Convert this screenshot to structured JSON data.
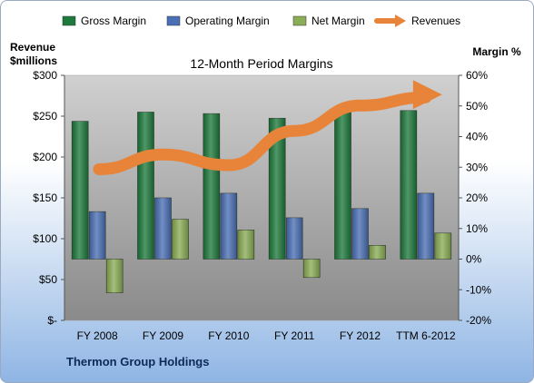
{
  "chart_data": {
    "type": "bar",
    "title": "12-Month Period Margins",
    "subtitle": "Thermon Group Holdings",
    "categories": [
      "FY 2008",
      "FY 2009",
      "FY 2010",
      "FY 2011",
      "FY 2012",
      "TTM 6-2012"
    ],
    "series": [
      {
        "name": "Gross Margin",
        "axis": "right",
        "kind": "bar",
        "color": "#1e7a3c",
        "values": [
          45,
          48,
          47.5,
          46,
          48.5,
          48.5
        ]
      },
      {
        "name": "Operating Margin",
        "axis": "right",
        "kind": "bar",
        "color": "#4a6fb5",
        "values": [
          15.5,
          20,
          21.5,
          13.5,
          16.5,
          21.5
        ]
      },
      {
        "name": "Net Margin",
        "axis": "right",
        "kind": "bar",
        "color": "#8aad55",
        "values": [
          -11,
          13,
          9.5,
          -6,
          4.5,
          8.5
        ]
      },
      {
        "name": "Revenues",
        "axis": "left",
        "kind": "trend-arrow",
        "color": "#e8843a",
        "values": [
          185,
          203,
          190,
          232,
          263,
          273
        ]
      }
    ],
    "ylabel_left": "Revenue $millions",
    "ylabel_left_lines": [
      "Revenue",
      "$millions"
    ],
    "ylabel_right": "Margin %",
    "ylim_left": [
      0,
      300
    ],
    "ylim_right": [
      -20,
      60
    ],
    "yticks_left": [
      "$-",
      "$50",
      "$100",
      "$150",
      "$200",
      "$250",
      "$300"
    ],
    "yticks_right": [
      "-20%",
      "-10%",
      "0%",
      "10%",
      "20%",
      "30%",
      "40%",
      "50%",
      "60%"
    ],
    "legend_position": "top",
    "grid": false
  }
}
